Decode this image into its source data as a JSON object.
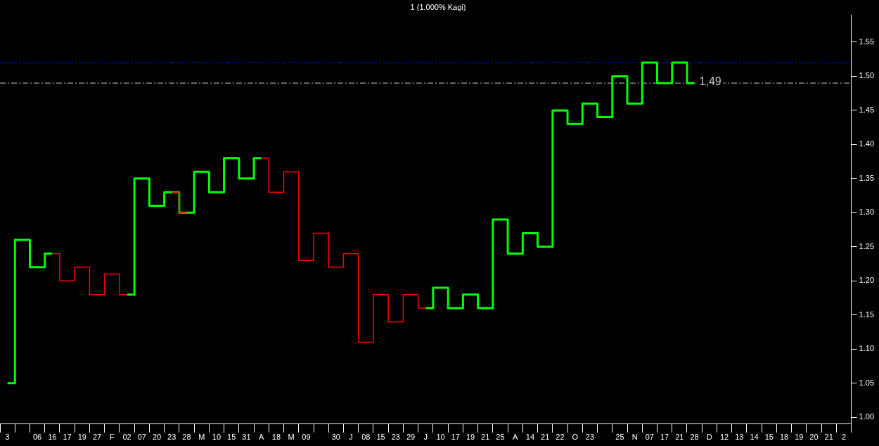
{
  "chart_data": {
    "type": "step",
    "title": "1 (1.000% Kagi)",
    "categories": [
      "3",
      null,
      "06",
      "16",
      "17",
      "19",
      "27",
      "F",
      "02",
      "07",
      "20",
      "23",
      "28",
      "M",
      "10",
      "15",
      "31",
      "A",
      "18",
      "M",
      "09",
      null,
      "30",
      "J",
      "08",
      "15",
      "23",
      "29",
      "J",
      "10",
      "17",
      "19",
      "21",
      "25",
      "A",
      "14",
      "21",
      "22",
      "O",
      "23",
      null,
      "25",
      "N",
      "07",
      "17",
      "21",
      "28",
      "D",
      "12",
      "13",
      "14",
      "15",
      "18",
      "19",
      "20",
      "21",
      "2"
    ],
    "series": [
      {
        "color": "#00ff00",
        "values": [
          1.05,
          1.26,
          1.22,
          1.24,
          null,
          null,
          null,
          null,
          1.18,
          1.35,
          1.31,
          1.33,
          1.3,
          1.36,
          1.33,
          1.38,
          1.35,
          1.38,
          null,
          null,
          null,
          null,
          null,
          null,
          null,
          null,
          null,
          null,
          1.16,
          1.19,
          1.16,
          1.18,
          1.16,
          1.29,
          1.24,
          1.27,
          1.25,
          1.45,
          1.43,
          1.46,
          1.44,
          1.5,
          1.46,
          1.52,
          1.49,
          1.52,
          1.49,
          null,
          null,
          null,
          null,
          null,
          null,
          null,
          null,
          null,
          null
        ]
      },
      {
        "color": "#ff0000",
        "values": [
          null,
          null,
          null,
          1.24,
          1.2,
          1.22,
          1.18,
          1.21,
          1.18,
          null,
          null,
          1.33,
          1.3,
          null,
          null,
          null,
          null,
          1.38,
          1.33,
          1.36,
          1.23,
          1.27,
          1.22,
          1.24,
          1.11,
          1.18,
          1.14,
          1.18,
          1.16,
          null,
          null,
          null,
          null,
          null,
          null,
          null,
          null,
          null,
          null,
          null,
          null,
          null,
          null,
          null,
          null,
          null,
          null,
          null,
          null,
          null,
          null,
          null,
          null,
          null,
          null,
          null,
          null
        ]
      }
    ],
    "ylim": [
      0.99,
      1.59
    ],
    "yticks": [
      {
        "value": 1.0,
        "label": "1.00"
      },
      1.05,
      {
        "value": 1.1,
        "label": "1.10"
      },
      1.15,
      {
        "value": 1.2,
        "label": "1.20"
      },
      1.25,
      {
        "value": 1.3,
        "label": "1.30"
      },
      1.35,
      {
        "value": 1.4,
        "label": "1.40"
      },
      1.45,
      {
        "value": 1.5,
        "label": "1.50"
      },
      1.55
    ],
    "ref_lines": [
      {
        "axis": "y",
        "value": 1.52,
        "color": "#0000ff",
        "line_style": "dashed"
      },
      {
        "axis": "y",
        "value": 1.49,
        "label": "1,49",
        "color": "#c8c8c8",
        "line_style": "dashed"
      }
    ],
    "grid": false,
    "legend": false
  }
}
